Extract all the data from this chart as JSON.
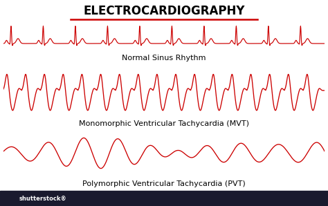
{
  "title": "ELECTROCARDIOGRAPHY",
  "title_fontsize": 12,
  "title_color": "#000000",
  "underline_color": "#cc0000",
  "bg_color": "#ffffff",
  "ecg_color": "#cc0000",
  "label1": "Normal Sinus Rhythm",
  "label2": "Monomorphic Ventricular Tachycardia (MVT)",
  "label3": "Polymorphic Ventricular Tachycardia (PVT)",
  "label_fontsize": 8.0,
  "bottom_bar_color": "#1a1a2e",
  "bottom_text_color": "#ffffff",
  "bottom_text": "shutterstock®",
  "figsize": [
    4.74,
    2.98
  ],
  "dpi": 100
}
